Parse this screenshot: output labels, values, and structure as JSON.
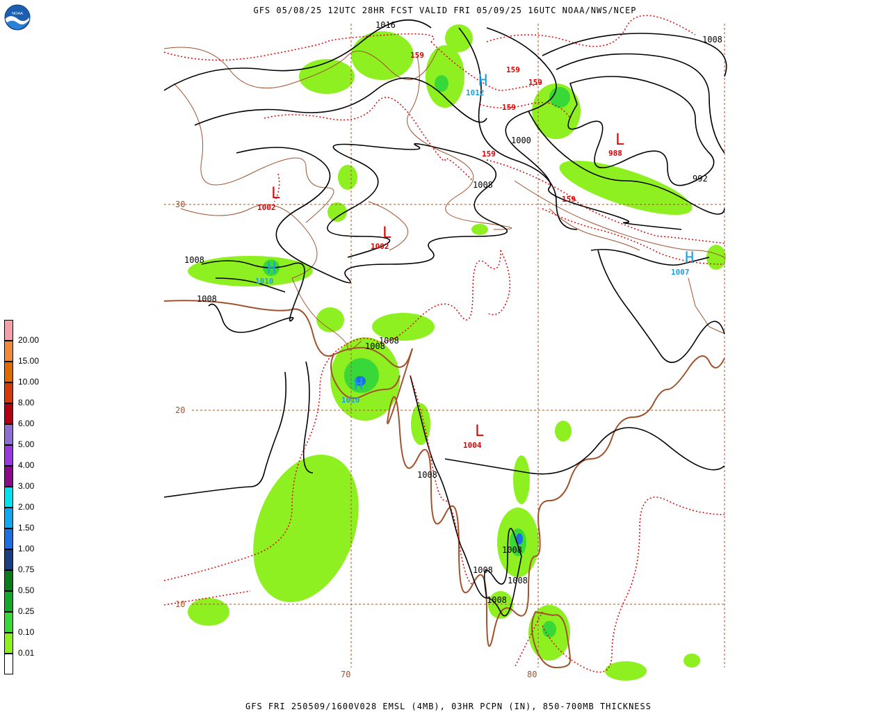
{
  "header": {
    "title": "GFS 05/08/25 12UTC 28HR FCST VALID FRI 05/09/25 16UTC NOAA/NWS/NCEP"
  },
  "footer": {
    "caption": "GFS FRI 250509/1600V028 EMSL (4MB), 03HR PCPN (IN), 850-700MB THICKNESS"
  },
  "logo": {
    "text": "NOAA",
    "icon": "noaa-logo-icon"
  },
  "legend": {
    "items": [
      {
        "label": "20.00",
        "color": "#f5a0a8"
      },
      {
        "label": "15.00",
        "color": "#ee8a3a"
      },
      {
        "label": "10.00",
        "color": "#e06a00"
      },
      {
        "label": "8.00",
        "color": "#d43a0a"
      },
      {
        "label": "6.00",
        "color": "#b40010"
      },
      {
        "label": "5.00",
        "color": "#8c6fd0"
      },
      {
        "label": "4.00",
        "color": "#9a38e0"
      },
      {
        "label": "3.00",
        "color": "#8a0b8a"
      },
      {
        "label": "2.00",
        "color": "#00e2ee"
      },
      {
        "label": "1.50",
        "color": "#10a8ee"
      },
      {
        "label": "1.00",
        "color": "#1c70e0"
      },
      {
        "label": "0.75",
        "color": "#1a3e80"
      },
      {
        "label": "0.50",
        "color": "#0a7a1a"
      },
      {
        "label": "0.25",
        "color": "#14a82a"
      },
      {
        "label": "0.10",
        "color": "#38d838"
      },
      {
        "label": "0.01",
        "color": "#8ef020"
      },
      {
        "label": "",
        "color": "#ffffff"
      }
    ]
  },
  "grid": {
    "lat_labels": [
      "30",
      "20",
      "10"
    ],
    "lon_labels": [
      "70",
      "80"
    ]
  },
  "pressure_centers": [
    {
      "symbol": "L",
      "value": "1002",
      "type": "low"
    },
    {
      "symbol": "L",
      "value": "1002",
      "type": "low"
    },
    {
      "symbol": "L",
      "value": "988",
      "type": "low"
    },
    {
      "symbol": "L",
      "value": "1004",
      "type": "low"
    },
    {
      "symbol": "H",
      "value": "1012",
      "type": "high"
    },
    {
      "symbol": "H",
      "value": "1010",
      "type": "high"
    },
    {
      "symbol": "H",
      "value": "1010",
      "type": "high"
    },
    {
      "symbol": "H",
      "value": "1007",
      "type": "high"
    }
  ],
  "isobar_labels": [
    "1016",
    "1008",
    "1000",
    "1008",
    "992",
    "1008",
    "1008",
    "1008",
    "1008",
    "1008",
    "1008",
    "1008",
    "1008",
    "1008"
  ],
  "thickness_labels": [
    "159",
    "159",
    "159",
    "159",
    "159",
    "159"
  ]
}
